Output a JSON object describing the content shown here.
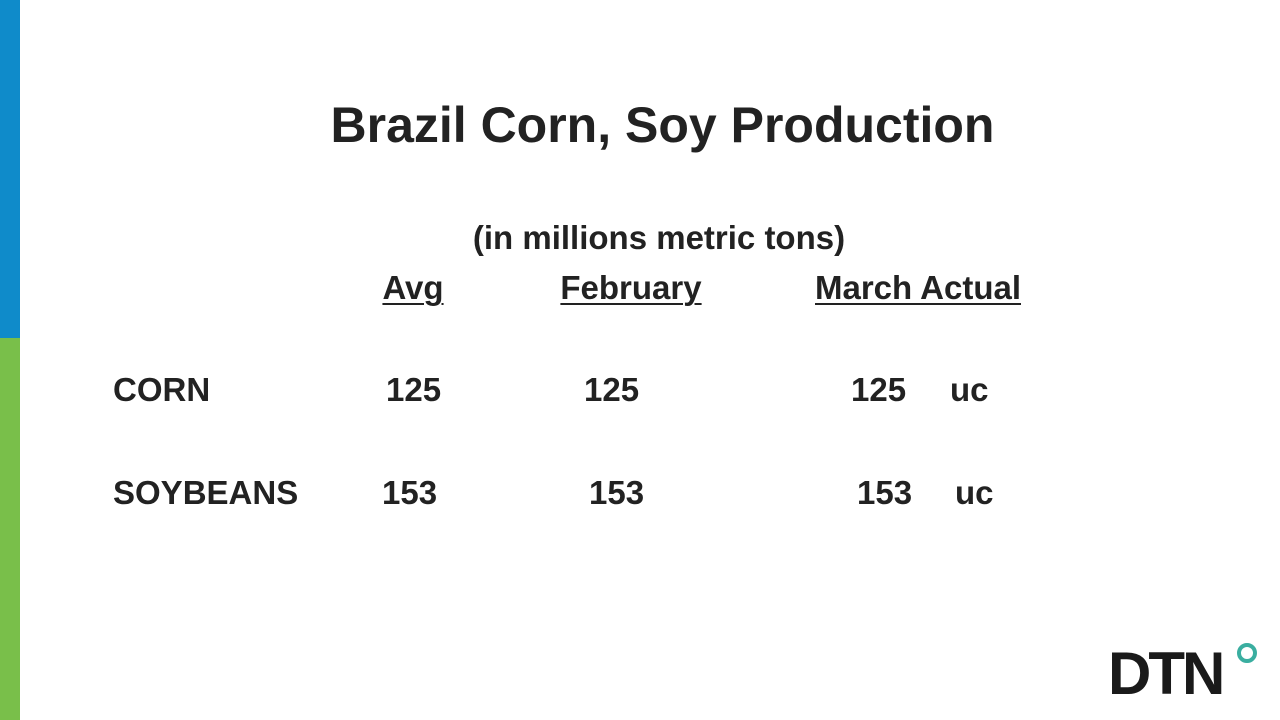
{
  "title": "Brazil Corn, Soy Production",
  "subtitle": "(in millions metric tons)",
  "table": {
    "header": [
      "Avg",
      "February",
      "March Actual"
    ],
    "rows": [
      {
        "label": "CORN",
        "values": [
          125,
          125,
          125
        ],
        "note": "uc"
      },
      {
        "label": "SOYBEANS",
        "values": [
          153,
          153,
          153
        ],
        "note": "uc"
      }
    ]
  },
  "logo": "DTN"
}
